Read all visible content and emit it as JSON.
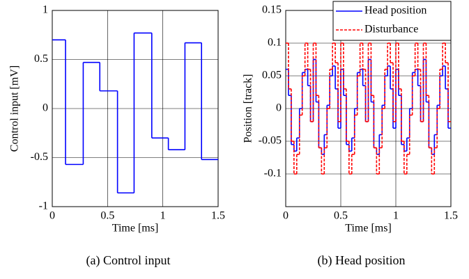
{
  "chart_data": [
    {
      "type": "line",
      "drawstyle": "steps-post",
      "caption": "(a) Control input",
      "xlabel": "Time [ms]",
      "ylabel": "Control input [mV]",
      "x": [
        0,
        0.12,
        0.28,
        0.43,
        0.59,
        0.74,
        0.9,
        1.05,
        1.2,
        1.35
      ],
      "series": [
        {
          "color": "#0000ff",
          "dash": false,
          "values": [
            0.7,
            -0.57,
            0.47,
            0.18,
            -0.86,
            0.77,
            -0.3,
            -0.42,
            0.67,
            -0.52
          ]
        }
      ],
      "xlim": [
        0,
        1.5
      ],
      "xticks": [
        0,
        0.5,
        1,
        1.5
      ],
      "ylim": [
        -1,
        1
      ],
      "yticks": [
        -1,
        -0.5,
        0,
        0.5,
        1
      ],
      "grid": true
    },
    {
      "type": "line",
      "drawstyle": "steps-post",
      "caption": "(b) Head position",
      "xlabel": "Time [ms]",
      "ylabel": "Position [track]",
      "x": [
        0,
        0.025,
        0.05,
        0.075,
        0.1,
        0.125,
        0.15,
        0.175,
        0.2,
        0.225,
        0.25,
        0.275,
        0.3,
        0.325,
        0.35,
        0.375,
        0.4,
        0.425,
        0.45,
        0.475,
        0.5,
        0.525,
        0.55,
        0.575,
        0.6,
        0.625,
        0.65,
        0.675,
        0.7,
        0.725,
        0.75,
        0.775,
        0.8,
        0.825,
        0.85,
        0.875,
        0.9,
        0.925,
        0.95,
        0.975,
        1,
        1.025,
        1.05,
        1.075,
        1.1,
        1.125,
        1.15,
        1.175,
        1.2,
        1.225,
        1.25,
        1.275,
        1.3,
        1.325,
        1.35,
        1.375,
        1.4,
        1.425,
        1.45,
        1.475
      ],
      "series": [
        {
          "name": "Head position",
          "color": "#0000ff",
          "dash": false,
          "values": [
            0.06,
            0.02,
            -0.055,
            -0.065,
            -0.045,
            0.0,
            0.055,
            0.06,
            0.035,
            -0.02,
            0.075,
            0.01,
            -0.06,
            -0.07,
            -0.04,
            0.005,
            0.05,
            0.065,
            0.03,
            -0.03,
            0.06,
            0.02,
            -0.055,
            -0.065,
            -0.045,
            0.0,
            0.055,
            0.06,
            0.035,
            -0.02,
            0.075,
            0.01,
            -0.06,
            -0.07,
            -0.04,
            0.005,
            0.05,
            0.065,
            0.03,
            -0.03,
            0.06,
            0.02,
            -0.055,
            -0.065,
            -0.045,
            0.0,
            0.055,
            0.06,
            0.035,
            -0.02,
            0.075,
            0.01,
            -0.06,
            -0.07,
            -0.04,
            0.005,
            0.05,
            0.065,
            0.03,
            -0.03
          ]
        },
        {
          "name": "Disturbance",
          "color": "#ff0000",
          "dash": true,
          "values": [
            0.1,
            0.03,
            -0.05,
            -0.1,
            -0.07,
            -0.01,
            0.05,
            0.1,
            0.06,
            -0.02,
            0.1,
            0.02,
            -0.06,
            -0.1,
            -0.06,
            0.0,
            0.06,
            0.1,
            0.07,
            -0.02,
            0.1,
            0.03,
            -0.05,
            -0.1,
            -0.07,
            -0.01,
            0.05,
            0.1,
            0.06,
            -0.02,
            0.1,
            0.02,
            -0.06,
            -0.1,
            -0.06,
            0.0,
            0.06,
            0.1,
            0.07,
            -0.02,
            0.1,
            0.03,
            -0.05,
            -0.1,
            -0.07,
            -0.01,
            0.05,
            0.1,
            0.06,
            -0.02,
            0.1,
            0.02,
            -0.06,
            -0.1,
            -0.06,
            0.0,
            0.06,
            0.1,
            0.07,
            -0.02
          ]
        }
      ],
      "xlim": [
        0,
        1.5
      ],
      "xticks": [
        0,
        0.5,
        1,
        1.5
      ],
      "ylim": [
        -0.15,
        0.15
      ],
      "yticks": [
        -0.1,
        -0.05,
        0,
        0.05,
        0.1,
        0.15
      ],
      "grid": true,
      "legend": "upper right"
    }
  ]
}
